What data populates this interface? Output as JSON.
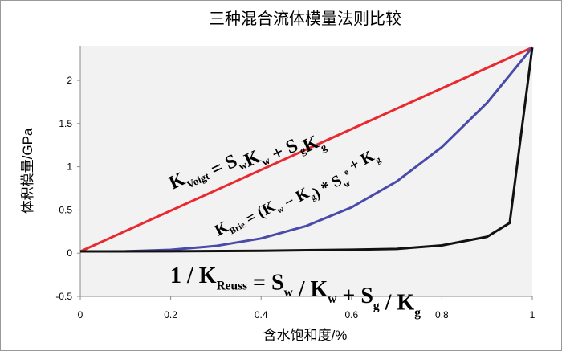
{
  "chart_data": {
    "type": "line",
    "title": "三种混合流体模量法则比较",
    "x_label": "含水饱和度/%",
    "y_label": "体积模量/GPa",
    "xlim": [
      0,
      1
    ],
    "xticks": [
      0,
      0.2,
      0.4,
      0.6,
      0.8,
      1
    ],
    "ylim": [
      -0.5,
      2.4
    ],
    "yticks": [
      -0.5,
      0,
      0.5,
      1,
      1.5,
      2
    ],
    "series": [
      {
        "name": "Voigt",
        "color": "#e8292f",
        "x": [
          0,
          1
        ],
        "values": [
          0.02,
          2.38
        ]
      },
      {
        "name": "Brie",
        "color": "#4a4aa8",
        "x": [
          0,
          0.1,
          0.2,
          0.3,
          0.4,
          0.5,
          0.6,
          0.7,
          0.8,
          0.9,
          1
        ],
        "values": [
          0.02,
          0.022,
          0.039,
          0.084,
          0.171,
          0.315,
          0.53,
          0.83,
          1.228,
          1.74,
          2.38
        ]
      },
      {
        "name": "Reuss",
        "color": "#111111",
        "x": [
          0,
          0.2,
          0.4,
          0.6,
          0.7,
          0.8,
          0.9,
          0.95,
          1
        ],
        "values": [
          0.02,
          0.022,
          0.028,
          0.04,
          0.05,
          0.09,
          0.19,
          0.35,
          2.38
        ]
      }
    ],
    "annotations": [
      {
        "parts": [
          {
            "t": "K",
            "s": "Voigt"
          },
          {
            "t": " = S",
            "s": "w"
          },
          {
            "t": "K",
            "s": "w"
          },
          {
            "t": " + S",
            "s": "g"
          },
          {
            "t": "K",
            "s": "g"
          }
        ]
      },
      {
        "parts": [
          {
            "t": "K",
            "s": "Brie"
          },
          {
            "t": " = (K",
            "s": "w"
          },
          {
            "t": " − K",
            "s": "g"
          },
          {
            "t": ") * S",
            "s": "w",
            "sup": "e"
          },
          {
            "t": " + K",
            "s": "g"
          }
        ]
      },
      {
        "parts": [
          {
            "t": "1 / K",
            "s": "Reuss"
          },
          {
            "t": " = S",
            "s": "w"
          },
          {
            "t": " / K",
            "s": "w"
          },
          {
            "t": " + S",
            "s": "g"
          },
          {
            "t": " / K",
            "s": "g"
          }
        ]
      }
    ]
  }
}
